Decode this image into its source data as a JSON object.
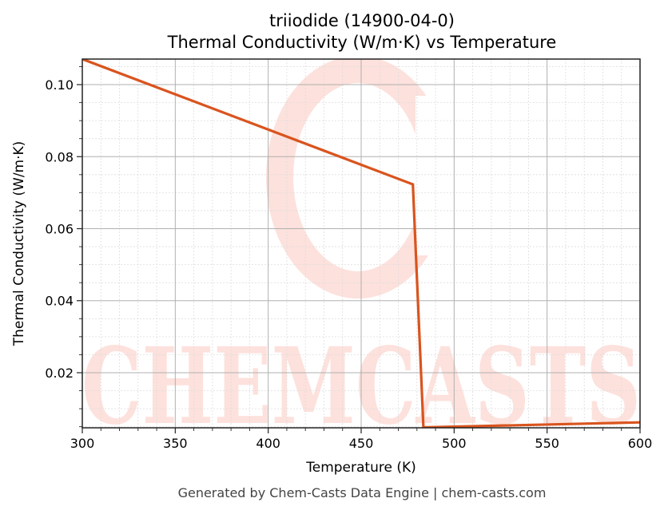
{
  "header": {
    "title_line1": "triiodide (14900-04-0)",
    "title_line2": "Thermal Conductivity (W/m·K) vs Temperature"
  },
  "axes": {
    "xlabel": "Temperature (K)",
    "ylabel": "Thermal Conductivity (W/m·K)",
    "x_ticks": [
      "300",
      "350",
      "400",
      "450",
      "500",
      "550",
      "600"
    ],
    "y_ticks": [
      "0.02",
      "0.04",
      "0.06",
      "0.08",
      "0.10"
    ]
  },
  "footer": {
    "text": "Generated by Chem-Casts Data Engine | chem-casts.com"
  },
  "watermark": {
    "text": "CHEMCASTS",
    "color": "#fddcd6"
  },
  "colors": {
    "line": "#d9541e",
    "grid_major": "#b0b0b0",
    "grid_minor": "#dddddd",
    "axis": "#222222"
  },
  "chart_data": {
    "type": "line",
    "title": "triiodide (14900-04-0)\nThermal Conductivity (W/m·K) vs Temperature",
    "xlabel": "Temperature (K)",
    "ylabel": "Thermal Conductivity (W/m·K)",
    "xlim": [
      300,
      600
    ],
    "ylim": [
      0.0047,
      0.1071
    ],
    "grid": true,
    "legend": null,
    "series": [
      {
        "name": "Thermal Conductivity",
        "x": [
          300,
          477.8,
          483.5,
          600
        ],
        "y": [
          0.1071,
          0.0723,
          0.0048,
          0.0062
        ]
      }
    ],
    "x_ticks": [
      300,
      350,
      400,
      450,
      500,
      550,
      600
    ],
    "y_ticks": [
      0.02,
      0.04,
      0.06,
      0.08,
      0.1
    ]
  }
}
